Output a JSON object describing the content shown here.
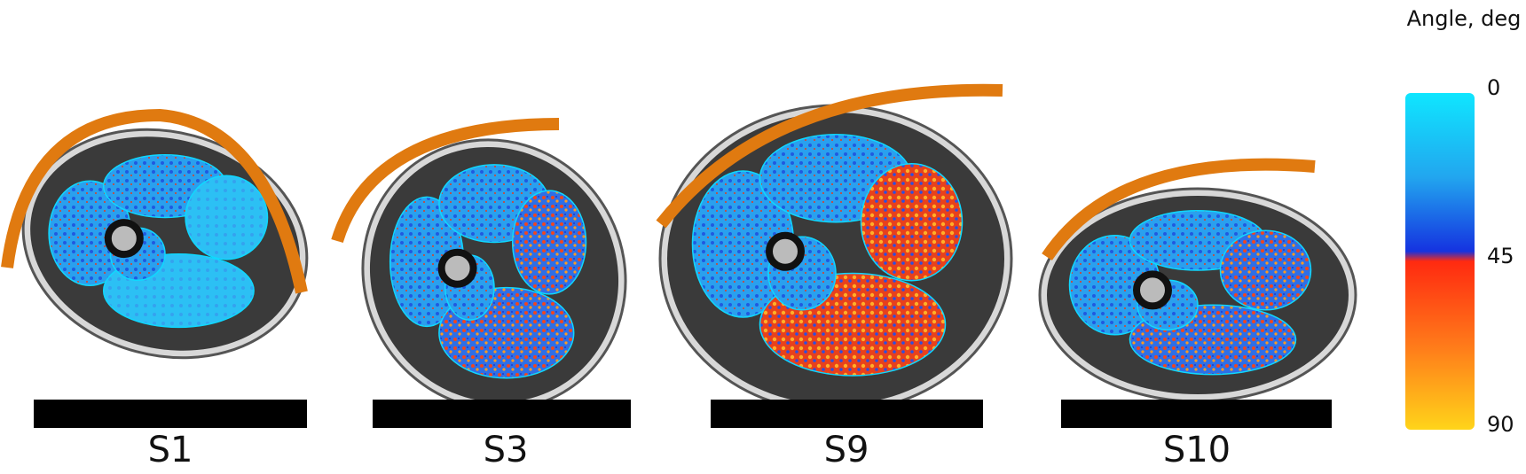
{
  "panels": [
    {
      "label": "S1"
    },
    {
      "label": "S3"
    },
    {
      "label": "S9"
    },
    {
      "label": "S10"
    }
  ],
  "colorbar": {
    "title": "Angle, deg",
    "ticks": [
      0,
      45,
      90
    ]
  }
}
